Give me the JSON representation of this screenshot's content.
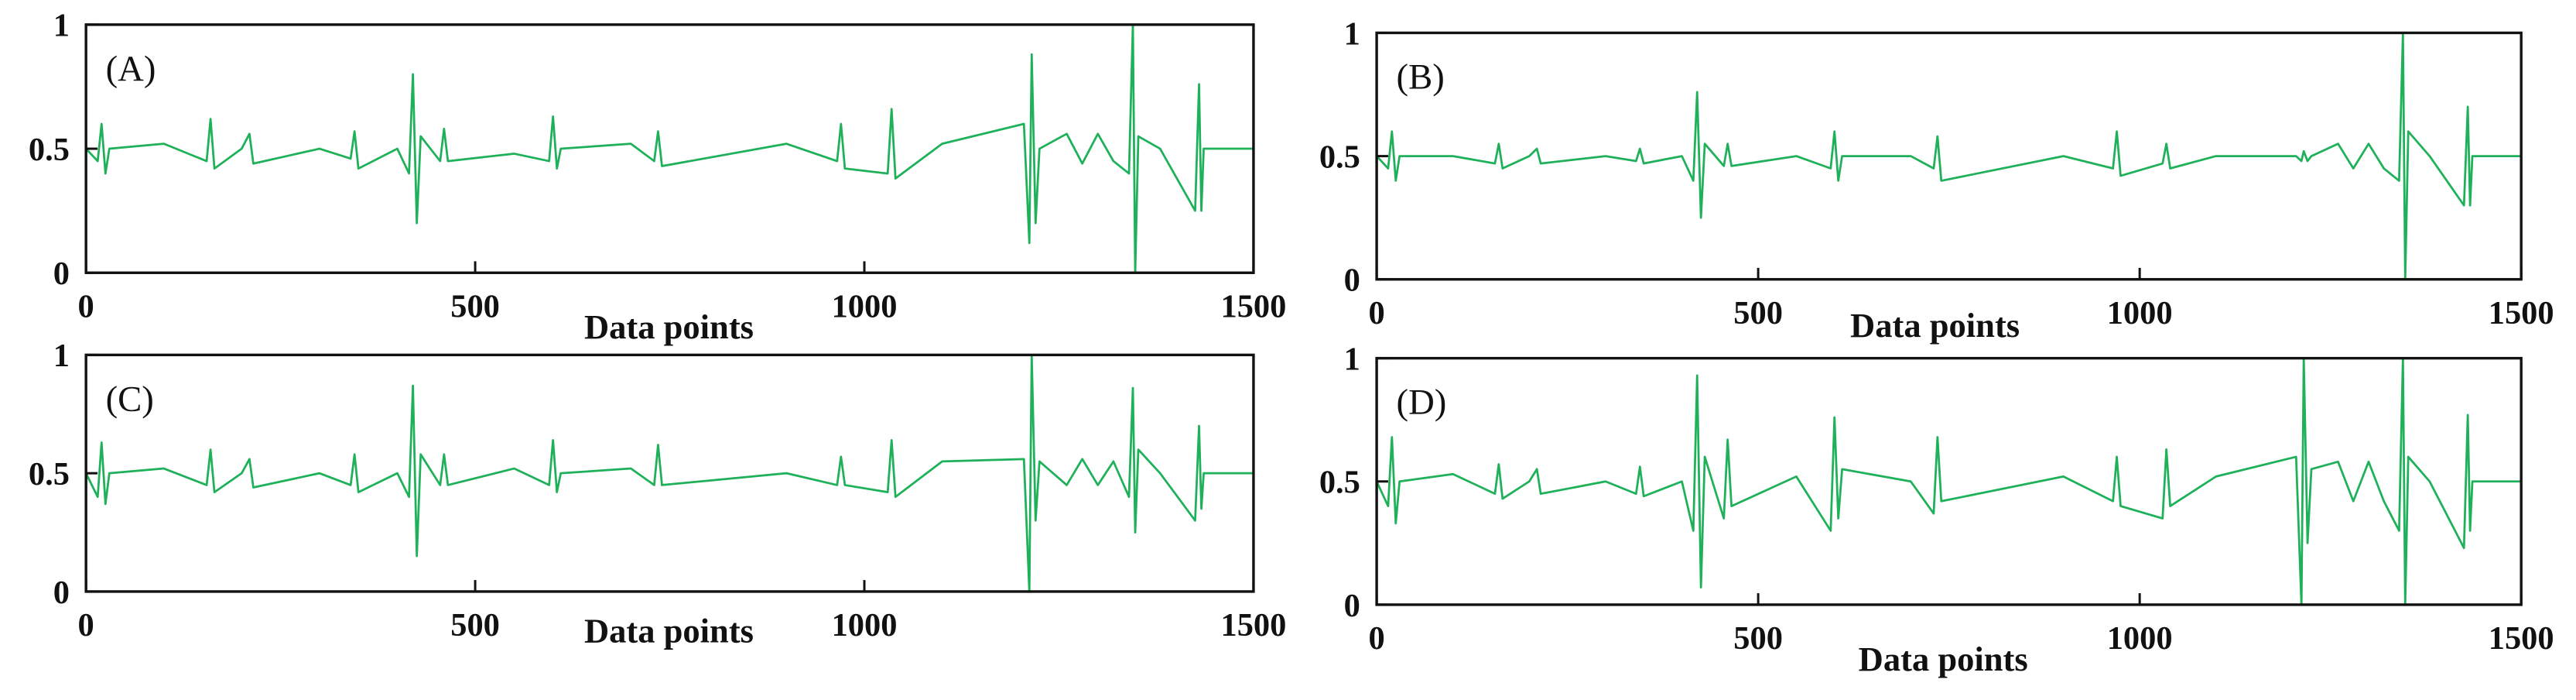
{
  "chart_data": [
    {
      "type": "line",
      "title": "(A)",
      "xlabel": "Data points",
      "color": "#1fb15a",
      "xlim": [
        0,
        1500
      ],
      "xticks": [
        0,
        500,
        1000,
        1500
      ],
      "ylim": [
        0,
        1
      ],
      "yticks": [
        0,
        0.5,
        1
      ],
      "x": [
        0,
        15,
        20,
        25,
        30,
        100,
        155,
        160,
        165,
        200,
        210,
        215,
        300,
        340,
        345,
        350,
        400,
        415,
        420,
        425,
        430,
        455,
        460,
        465,
        550,
        595,
        600,
        605,
        610,
        700,
        730,
        735,
        740,
        900,
        965,
        970,
        975,
        1030,
        1035,
        1040,
        1100,
        1205,
        1212,
        1215,
        1220,
        1225,
        1260,
        1280,
        1300,
        1320,
        1340,
        1345,
        1348,
        1352,
        1380,
        1425,
        1430,
        1433,
        1436,
        1500
      ],
      "values": [
        0.5,
        0.45,
        0.6,
        0.4,
        0.5,
        0.52,
        0.45,
        0.62,
        0.42,
        0.5,
        0.56,
        0.44,
        0.5,
        0.46,
        0.57,
        0.42,
        0.5,
        0.4,
        0.8,
        0.2,
        0.55,
        0.45,
        0.58,
        0.45,
        0.48,
        0.45,
        0.63,
        0.42,
        0.5,
        0.52,
        0.45,
        0.57,
        0.43,
        0.52,
        0.45,
        0.6,
        0.42,
        0.4,
        0.66,
        0.38,
        0.52,
        0.6,
        0.12,
        0.88,
        0.2,
        0.5,
        0.56,
        0.44,
        0.56,
        0.45,
        0.4,
        1.0,
        0.0,
        0.55,
        0.5,
        0.25,
        0.76,
        0.25,
        0.5,
        0.5
      ]
    },
    {
      "type": "line",
      "title": "(B)",
      "xlabel": "Data points",
      "color": "#1fb15a",
      "xlim": [
        0,
        1500
      ],
      "xticks": [
        0,
        500,
        1000,
        1500
      ],
      "ylim": [
        0,
        1
      ],
      "yticks": [
        0,
        0.5,
        1
      ],
      "x": [
        0,
        15,
        20,
        25,
        30,
        100,
        155,
        160,
        165,
        200,
        210,
        215,
        300,
        340,
        345,
        350,
        400,
        415,
        420,
        425,
        430,
        455,
        460,
        465,
        550,
        595,
        600,
        605,
        610,
        700,
        730,
        735,
        740,
        900,
        965,
        970,
        975,
        1030,
        1035,
        1040,
        1100,
        1205,
        1212,
        1215,
        1220,
        1225,
        1260,
        1280,
        1300,
        1320,
        1340,
        1345,
        1348,
        1352,
        1380,
        1425,
        1430,
        1433,
        1436,
        1500
      ],
      "values": [
        0.5,
        0.45,
        0.6,
        0.4,
        0.5,
        0.5,
        0.47,
        0.55,
        0.45,
        0.5,
        0.53,
        0.47,
        0.5,
        0.48,
        0.53,
        0.47,
        0.5,
        0.4,
        0.76,
        0.25,
        0.55,
        0.46,
        0.55,
        0.46,
        0.5,
        0.45,
        0.6,
        0.4,
        0.5,
        0.5,
        0.45,
        0.58,
        0.4,
        0.5,
        0.45,
        0.6,
        0.42,
        0.47,
        0.55,
        0.45,
        0.5,
        0.5,
        0.48,
        0.52,
        0.48,
        0.5,
        0.55,
        0.45,
        0.55,
        0.45,
        0.4,
        1.0,
        0.0,
        0.6,
        0.5,
        0.3,
        0.7,
        0.3,
        0.5,
        0.5
      ]
    },
    {
      "type": "line",
      "title": "(C)",
      "xlabel": "Data points",
      "color": "#1fb15a",
      "xlim": [
        0,
        1500
      ],
      "xticks": [
        0,
        500,
        1000,
        1500
      ],
      "ylim": [
        0,
        1
      ],
      "yticks": [
        0,
        0.5,
        1
      ],
      "x": [
        0,
        15,
        20,
        25,
        30,
        100,
        155,
        160,
        165,
        200,
        210,
        215,
        300,
        340,
        345,
        350,
        400,
        415,
        420,
        425,
        430,
        455,
        460,
        465,
        550,
        595,
        600,
        605,
        610,
        700,
        730,
        735,
        740,
        900,
        965,
        970,
        975,
        1030,
        1035,
        1040,
        1100,
        1205,
        1212,
        1215,
        1220,
        1225,
        1260,
        1280,
        1300,
        1320,
        1340,
        1345,
        1348,
        1352,
        1380,
        1425,
        1430,
        1433,
        1436,
        1500
      ],
      "values": [
        0.5,
        0.4,
        0.63,
        0.37,
        0.5,
        0.52,
        0.45,
        0.6,
        0.42,
        0.5,
        0.56,
        0.44,
        0.5,
        0.45,
        0.58,
        0.42,
        0.5,
        0.4,
        0.87,
        0.15,
        0.58,
        0.45,
        0.58,
        0.45,
        0.52,
        0.45,
        0.64,
        0.42,
        0.5,
        0.52,
        0.45,
        0.62,
        0.45,
        0.5,
        0.45,
        0.57,
        0.45,
        0.42,
        0.64,
        0.4,
        0.55,
        0.56,
        0.0,
        1.0,
        0.3,
        0.55,
        0.45,
        0.56,
        0.45,
        0.55,
        0.4,
        0.86,
        0.25,
        0.6,
        0.5,
        0.3,
        0.7,
        0.35,
        0.5,
        0.5
      ]
    },
    {
      "type": "line",
      "title": "(D)",
      "xlabel": "Data points",
      "color": "#1fb15a",
      "xlim": [
        0,
        1500
      ],
      "xticks": [
        0,
        500,
        1000,
        1500
      ],
      "ylim": [
        0,
        1
      ],
      "yticks": [
        0,
        0.5,
        1
      ],
      "x": [
        0,
        15,
        20,
        25,
        30,
        100,
        155,
        160,
        165,
        200,
        210,
        215,
        300,
        340,
        345,
        350,
        400,
        415,
        420,
        425,
        430,
        455,
        460,
        465,
        550,
        595,
        600,
        605,
        610,
        700,
        730,
        735,
        740,
        900,
        965,
        970,
        975,
        1030,
        1035,
        1040,
        1100,
        1205,
        1212,
        1215,
        1220,
        1225,
        1260,
        1280,
        1300,
        1320,
        1340,
        1345,
        1348,
        1352,
        1380,
        1425,
        1430,
        1433,
        1436,
        1500
      ],
      "values": [
        0.5,
        0.4,
        0.68,
        0.33,
        0.5,
        0.53,
        0.45,
        0.57,
        0.43,
        0.5,
        0.55,
        0.45,
        0.5,
        0.45,
        0.56,
        0.44,
        0.5,
        0.3,
        0.93,
        0.07,
        0.6,
        0.35,
        0.67,
        0.4,
        0.52,
        0.3,
        0.76,
        0.35,
        0.55,
        0.5,
        0.37,
        0.68,
        0.42,
        0.52,
        0.42,
        0.6,
        0.4,
        0.35,
        0.63,
        0.4,
        0.52,
        0.6,
        0.0,
        1.0,
        0.25,
        0.55,
        0.58,
        0.42,
        0.58,
        0.42,
        0.3,
        1.0,
        0.0,
        0.6,
        0.5,
        0.23,
        0.77,
        0.3,
        0.5,
        0.5
      ]
    }
  ]
}
